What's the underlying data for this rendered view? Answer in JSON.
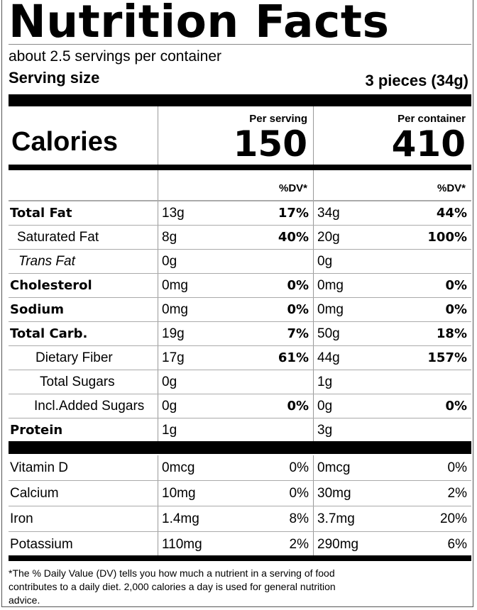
{
  "title": "Nutrition Facts",
  "servings_per_container": "about 2.5 servings per container",
  "serving_size": {
    "label": "Serving size",
    "value": "3 pieces (34g)"
  },
  "calories": {
    "label": "Calories",
    "per_serving_label": "Per serving",
    "per_serving": "150",
    "per_container_label": "Per container",
    "per_container": "410"
  },
  "dv_header": "%DV*",
  "nutrients": [
    {
      "name": "Total Fat",
      "bold": true,
      "serving": "13g",
      "serving_dv": "17%",
      "container": "34g",
      "container_dv": "44%"
    },
    {
      "name": "Saturated Fat",
      "serving": "8g",
      "serving_dv": "40%",
      "container": "20g",
      "container_dv": "100%"
    },
    {
      "name": "Trans Fat",
      "italic": true,
      "serving": "0g",
      "serving_dv": "",
      "container": "0g",
      "container_dv": ""
    },
    {
      "name": "Cholesterol",
      "bold": true,
      "serving": "0mg",
      "serving_dv": "0%",
      "container": "0mg",
      "container_dv": "0%"
    },
    {
      "name": "Sodium",
      "bold": true,
      "serving": "0mg",
      "serving_dv": "0%",
      "container": "0mg",
      "container_dv": "0%"
    },
    {
      "name": "Total Carb.",
      "bold": true,
      "serving": "19g",
      "serving_dv": "7%",
      "container": "50g",
      "container_dv": "18%"
    },
    {
      "name": "Dietary Fiber",
      "serving": "17g",
      "serving_dv": "61%",
      "container": "44g",
      "container_dv": "157%"
    },
    {
      "name": "Total Sugars",
      "serving": "0g",
      "serving_dv": "",
      "container": "1g",
      "container_dv": ""
    },
    {
      "name": "Incl.Added Sugars",
      "serving": "0g",
      "serving_dv": "0%",
      "container": "0g",
      "container_dv": "0%"
    },
    {
      "name": "Protein",
      "bold": true,
      "serving": "1g",
      "serving_dv": "",
      "container": "3g",
      "container_dv": ""
    }
  ],
  "vitamins": [
    {
      "name": "Vitamin D",
      "serving": "0mcg",
      "serving_dv": "0%",
      "container": "0mcg",
      "container_dv": "0%"
    },
    {
      "name": "Calcium",
      "serving": "10mg",
      "serving_dv": "0%",
      "container": "30mg",
      "container_dv": "2%"
    },
    {
      "name": "Iron",
      "serving": "1.4mg",
      "serving_dv": "8%",
      "container": "3.7mg",
      "container_dv": "20%"
    },
    {
      "name": "Potassium",
      "serving": "110mg",
      "serving_dv": "2%",
      "container": "290mg",
      "container_dv": "6%"
    }
  ],
  "footnote": "*The % Daily Value (DV) tells you how much a nutrient in a serving of food contributes to a daily diet. 2,000 calories a day is used for general nutrition advice."
}
